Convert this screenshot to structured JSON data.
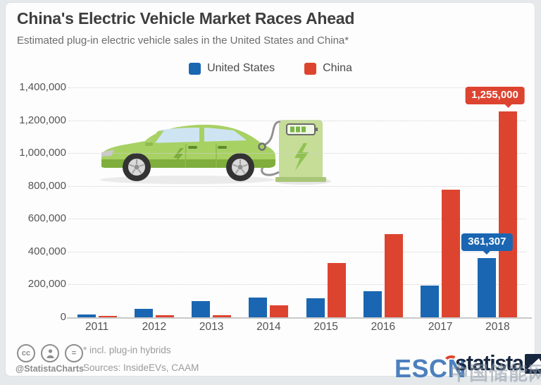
{
  "chart_data": {
    "type": "bar",
    "title": "China's Electric Vehicle Market Races Ahead",
    "subtitle": "Estimated plug-in electric vehicle sales in the United States and China*",
    "categories": [
      "2011",
      "2012",
      "2013",
      "2014",
      "2015",
      "2016",
      "2017",
      "2018"
    ],
    "series": [
      {
        "name": "United States",
        "color": "#1a66b2",
        "values": [
          18000,
          53000,
          97000,
          119000,
          114000,
          157000,
          195000,
          361307
        ],
        "callout": {
          "index": 7,
          "label": "361,307"
        }
      },
      {
        "name": "China",
        "color": "#dd4430",
        "values": [
          5500,
          13000,
          15000,
          74000,
          331000,
          507000,
          777000,
          1255000
        ],
        "callout": {
          "index": 7,
          "label": "1,255,000"
        }
      }
    ],
    "xlabel": "",
    "ylabel": "",
    "ylim": [
      0,
      1400000
    ],
    "yticks": [
      "1,400,000",
      "1,200,000",
      "1,000,000",
      "800,000",
      "600,000",
      "400,000",
      "200,000",
      "0"
    ],
    "grid": true,
    "legend_position": "top"
  },
  "footer": {
    "handle": "@StatistaCharts",
    "footnote": "* incl. plug-in hybrids",
    "sources": "Sources: InsideEVs, CAAM",
    "license_icons": [
      "cc-icon",
      "attribution-person-icon",
      "share-alike-icon"
    ],
    "share_alike_glyph": "=",
    "cc_glyph": "cc"
  },
  "branding": {
    "escn_logo_text": "ESCN",
    "statista_logo_text": "statista",
    "watermark_text": "中国储能网"
  },
  "illustration": {
    "name": "green electric car charging at charging station",
    "car_color": "#a8d164",
    "station_color": "#c5dd97"
  }
}
